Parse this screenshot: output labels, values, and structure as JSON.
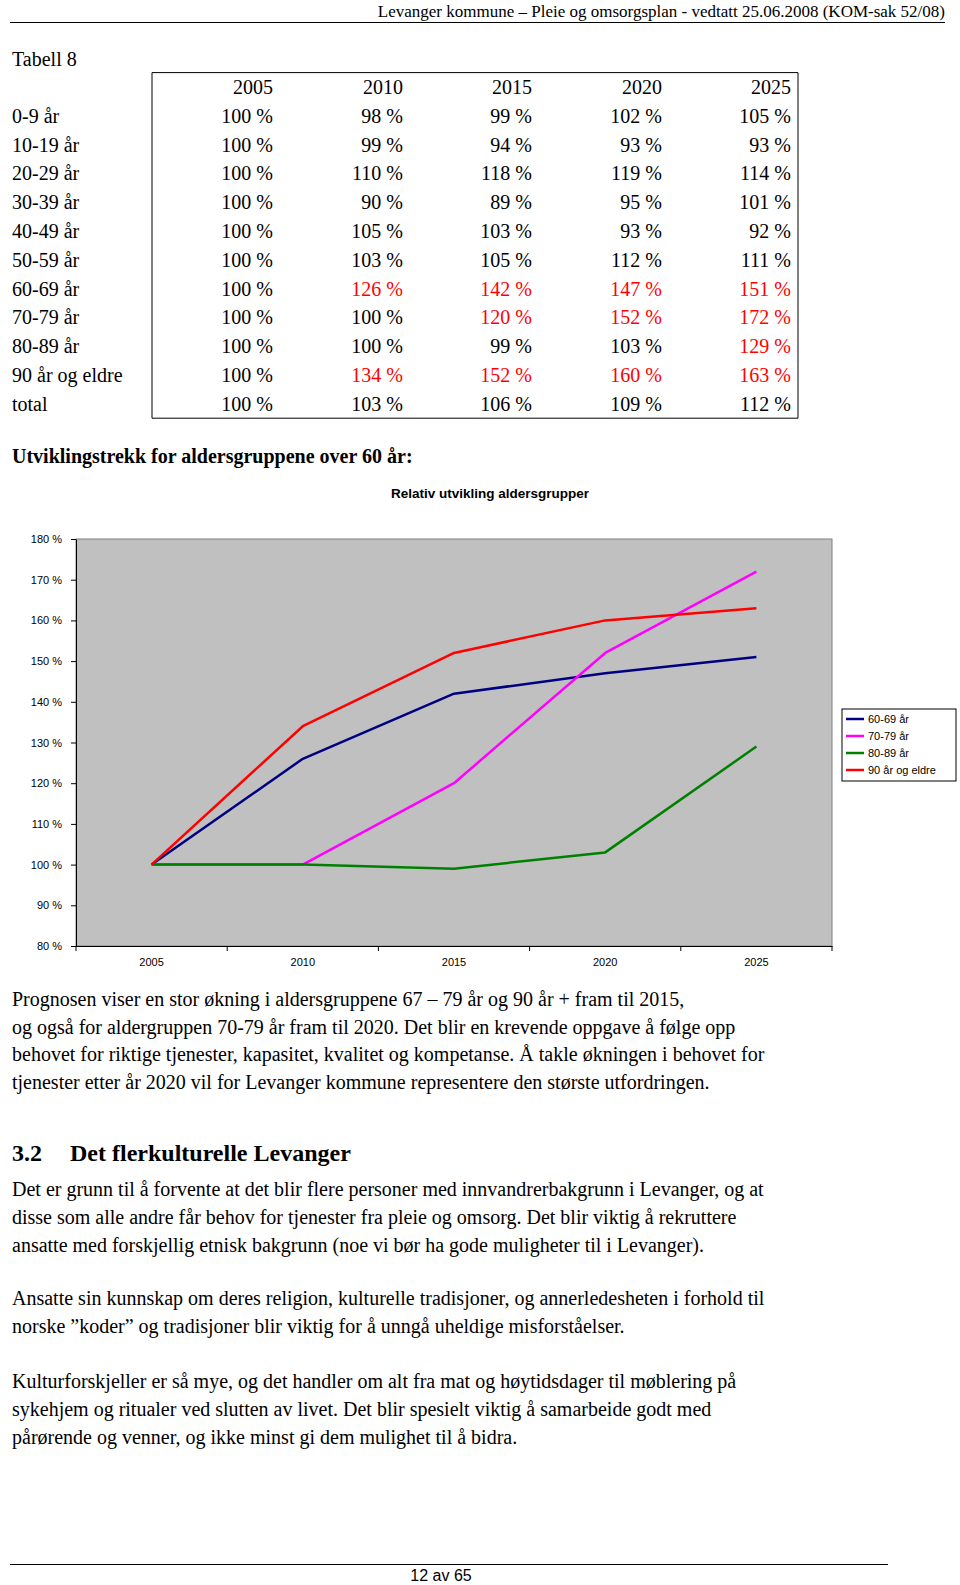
{
  "header": {
    "title": "Levanger kommune – Pleie og omsorgsplan - vedtatt 25.06.2008 (KOM-sak 52/08)"
  },
  "table": {
    "caption": "Tabell 8",
    "columns": [
      "2005",
      "2010",
      "2015",
      "2020",
      "2025"
    ],
    "rows": [
      {
        "label": "0-9 år",
        "cells": [
          "100 %",
          "98 %",
          "99 %",
          "102 %",
          "105 %"
        ],
        "colors": [
          "#000000",
          "#000000",
          "#000000",
          "#000000",
          "#000000"
        ]
      },
      {
        "label": "10-19 år",
        "cells": [
          "100 %",
          "99 %",
          "94 %",
          "93 %",
          "93 %"
        ],
        "colors": [
          "#000000",
          "#000000",
          "#000000",
          "#000000",
          "#000000"
        ]
      },
      {
        "label": "20-29 år",
        "cells": [
          "100 %",
          "110 %",
          "118 %",
          "119 %",
          "114 %"
        ],
        "colors": [
          "#000000",
          "#000000",
          "#000000",
          "#000000",
          "#000000"
        ]
      },
      {
        "label": "30-39 år",
        "cells": [
          "100 %",
          "90 %",
          "89 %",
          "95 %",
          "101 %"
        ],
        "colors": [
          "#000000",
          "#000000",
          "#000000",
          "#000000",
          "#000000"
        ]
      },
      {
        "label": "40-49 år",
        "cells": [
          "100 %",
          "105 %",
          "103 %",
          "93 %",
          "92 %"
        ],
        "colors": [
          "#000000",
          "#000000",
          "#000000",
          "#000000",
          "#000000"
        ]
      },
      {
        "label": "50-59 år",
        "cells": [
          "100 %",
          "103 %",
          "105 %",
          "112 %",
          "111 %"
        ],
        "colors": [
          "#000000",
          "#000000",
          "#000000",
          "#000000",
          "#000000"
        ]
      },
      {
        "label": "60-69 år",
        "cells": [
          "100 %",
          "126 %",
          "142 %",
          "147 %",
          "151 %"
        ],
        "colors": [
          "#000000",
          "#ff0000",
          "#ff0000",
          "#ff0000",
          "#ff0000"
        ]
      },
      {
        "label": "70-79 år",
        "cells": [
          "100 %",
          "100 %",
          "120 %",
          "152 %",
          "172 %"
        ],
        "colors": [
          "#000000",
          "#000000",
          "#ff0000",
          "#ff0000",
          "#ff0000"
        ]
      },
      {
        "label": "80-89 år",
        "cells": [
          "100 %",
          "100 %",
          "99 %",
          "103 %",
          "129 %"
        ],
        "colors": [
          "#000000",
          "#000000",
          "#000000",
          "#000000",
          "#ff0000"
        ]
      },
      {
        "label": "90 år og eldre",
        "cells": [
          "100 %",
          "134 %",
          "152 %",
          "160 %",
          "163 %"
        ],
        "colors": [
          "#000000",
          "#ff0000",
          "#ff0000",
          "#ff0000",
          "#ff0000"
        ]
      },
      {
        "label": "total",
        "cells": [
          "100 %",
          "103 %",
          "106 %",
          "109 %",
          "112 %"
        ],
        "colors": [
          "#000000",
          "#000000",
          "#000000",
          "#000000",
          "#000000"
        ]
      }
    ]
  },
  "section_heading": "Utviklingstrekk for aldersgruppene over 60 år:",
  "chart_data": {
    "type": "line",
    "title": "Relativ utvikling aldersgrupper",
    "categories": [
      "2005",
      "2010",
      "2015",
      "2020",
      "2025"
    ],
    "series": [
      {
        "name": "60-69 år",
        "color": "#000080",
        "values": [
          100,
          126,
          142,
          147,
          151
        ]
      },
      {
        "name": "70-79 år",
        "color": "#ff00ff",
        "values": [
          100,
          100,
          120,
          152,
          172
        ]
      },
      {
        "name": "80-89 år",
        "color": "#008000",
        "values": [
          100,
          100,
          99,
          103,
          129
        ]
      },
      {
        "name": "90 år og eldre",
        "color": "#ff0000",
        "values": [
          100,
          134,
          152,
          160,
          163
        ]
      }
    ],
    "ylim": [
      80,
      180
    ],
    "yticks": [
      {
        "value": 80,
        "label": "80 %"
      },
      {
        "value": 90,
        "label": "90 %"
      },
      {
        "value": 100,
        "label": "100 %"
      },
      {
        "value": 110,
        "label": "110 %"
      },
      {
        "value": 120,
        "label": "120 %"
      },
      {
        "value": 130,
        "label": "130 %"
      },
      {
        "value": 140,
        "label": "140 %"
      },
      {
        "value": 150,
        "label": "150 %"
      },
      {
        "value": 160,
        "label": "160 %"
      },
      {
        "value": 170,
        "label": "170 %"
      },
      {
        "value": 180,
        "label": "180 %"
      }
    ],
    "grid": false,
    "legend": "right"
  },
  "paragraphs": [
    [
      "Prognosen viser en stor økning i aldersgruppene 67 – 79 år og 90 år + fram til 2015,",
      "og også for aldergruppen 70-79 år fram til 2020. Det blir en krevende oppgave å følge opp",
      "behovet for riktige tjenester, kapasitet, kvalitet og kompetanse. Å takle økningen i behovet for",
      "tjenester etter år 2020 vil for Levanger kommune representere den største utfordringen."
    ]
  ],
  "section": {
    "number": "3.2",
    "title": "Det flerkulturelle Levanger",
    "paragraphs": [
      [
        "Det er grunn til å forvente at det blir flere personer med innvandrerbakgrunn i Levanger, og at",
        "disse som alle andre får behov for tjenester fra pleie og omsorg. Det blir viktig å rekruttere",
        "ansatte med forskjellig etnisk bakgrunn (noe vi bør ha gode muligheter til i Levanger)."
      ],
      [
        "Ansatte sin kunnskap om deres religion, kulturelle tradisjoner, og annerledesheten i forhold til",
        "norske ”koder” og tradisjoner blir viktig for å unngå uheldige misforståelser."
      ],
      [
        "Kulturforskjeller er så mye, og det handler om alt fra mat og høytidsdager til møblering på",
        "sykehjem og ritualer ved slutten av livet. Det blir spesielt viktig å samarbeide godt med",
        "pårørende og venner, og ikke minst gi dem mulighet til å bidra."
      ]
    ]
  },
  "footer": {
    "page": "12 av 65"
  }
}
